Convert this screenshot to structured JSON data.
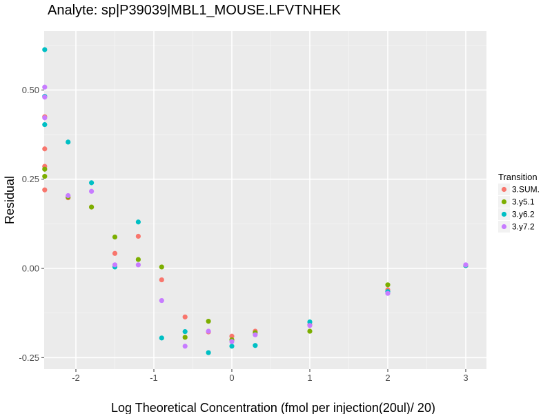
{
  "chart_data": {
    "type": "scatter",
    "title": "Analyte: sp|P39039|MBL1_MOUSE.LFVTNHEK",
    "xlabel": "Log Theoretical Concentration (fmol per injection(20ul)/ 20)",
    "ylabel": "Residual",
    "xlim": [
      -2.4,
      3.25
    ],
    "ylim": [
      -0.28,
      0.64
    ],
    "x_ticks": [
      -2,
      -1,
      0,
      1,
      2,
      3
    ],
    "x_tick_labels": [
      "-2",
      "-1",
      "0",
      "1",
      "2",
      "3"
    ],
    "y_ticks": [
      -0.25,
      0.0,
      0.25,
      0.5
    ],
    "y_tick_labels": [
      "-0.25",
      "0.00",
      "0.25",
      "0.50"
    ],
    "grid": true,
    "legend": {
      "title": "Transition",
      "position": "right"
    },
    "series": [
      {
        "name": "3.SUM.",
        "color": "#F8766D",
        "points": [
          [
            -2.4,
            0.335
          ],
          [
            -2.4,
            0.286
          ],
          [
            -2.4,
            0.22
          ],
          [
            -2.4,
            0.425
          ],
          [
            -2.1,
            0.198
          ],
          [
            -1.8,
            0.172
          ],
          [
            -1.5,
            0.042
          ],
          [
            -1.2,
            0.09
          ],
          [
            -0.9,
            -0.032
          ],
          [
            -0.6,
            -0.136
          ],
          [
            -0.3,
            -0.178
          ],
          [
            0.0,
            -0.19
          ],
          [
            0.3,
            -0.176
          ],
          [
            1.0,
            -0.158
          ],
          [
            2.0,
            -0.06
          ],
          [
            3.0,
            0.008
          ]
        ]
      },
      {
        "name": "3.y5.1",
        "color": "#7CAE00",
        "points": [
          [
            -2.4,
            0.278
          ],
          [
            -2.4,
            0.258
          ],
          [
            -2.1,
            0.2
          ],
          [
            -1.8,
            0.172
          ],
          [
            -1.5,
            0.088
          ],
          [
            -1.2,
            0.025
          ],
          [
            -0.9,
            0.004
          ],
          [
            -0.6,
            -0.193
          ],
          [
            -0.3,
            -0.148
          ],
          [
            0.0,
            -0.2
          ],
          [
            0.3,
            -0.18
          ],
          [
            1.0,
            -0.176
          ],
          [
            2.0,
            -0.046
          ],
          [
            3.0,
            0.008
          ]
        ]
      },
      {
        "name": "3.y6.2",
        "color": "#00BFC4",
        "points": [
          [
            -2.4,
            0.613
          ],
          [
            -2.4,
            0.482
          ],
          [
            -2.4,
            0.403
          ],
          [
            -2.1,
            0.354
          ],
          [
            -1.8,
            0.24
          ],
          [
            -1.5,
            0.004
          ],
          [
            -1.2,
            0.13
          ],
          [
            -0.9,
            -0.195
          ],
          [
            -0.6,
            -0.177
          ],
          [
            -0.3,
            -0.236
          ],
          [
            0.0,
            -0.218
          ],
          [
            0.3,
            -0.216
          ],
          [
            1.0,
            -0.15
          ],
          [
            2.0,
            -0.065
          ],
          [
            3.0,
            0.008
          ]
        ]
      },
      {
        "name": "3.y7.2",
        "color": "#C77CFF",
        "points": [
          [
            -2.4,
            0.508
          ],
          [
            -2.4,
            0.48
          ],
          [
            -2.4,
            0.422
          ],
          [
            -2.1,
            0.204
          ],
          [
            -1.8,
            0.216
          ],
          [
            -1.5,
            0.01
          ],
          [
            -1.2,
            0.01
          ],
          [
            -0.9,
            -0.09
          ],
          [
            -0.6,
            -0.218
          ],
          [
            -0.3,
            -0.176
          ],
          [
            0.0,
            -0.205
          ],
          [
            0.3,
            -0.186
          ],
          [
            1.0,
            -0.16
          ],
          [
            2.0,
            -0.07
          ],
          [
            3.0,
            0.01
          ]
        ]
      }
    ]
  }
}
